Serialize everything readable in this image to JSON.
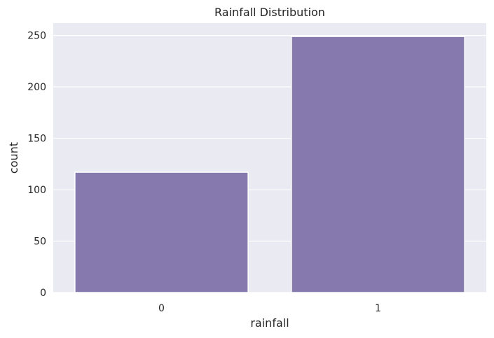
{
  "chart_data": {
    "type": "bar",
    "title": "Rainfall Distribution",
    "xlabel": "rainfall",
    "ylabel": "count",
    "categories": [
      "0",
      "1"
    ],
    "values": [
      117,
      249
    ],
    "ylim": [
      0,
      262
    ],
    "yticks": [
      0,
      50,
      100,
      150,
      200,
      250
    ],
    "grid": true,
    "bar_color": "#8579AD",
    "background_color": "#EAEAF2",
    "grid_color": "#FFFFFF"
  }
}
